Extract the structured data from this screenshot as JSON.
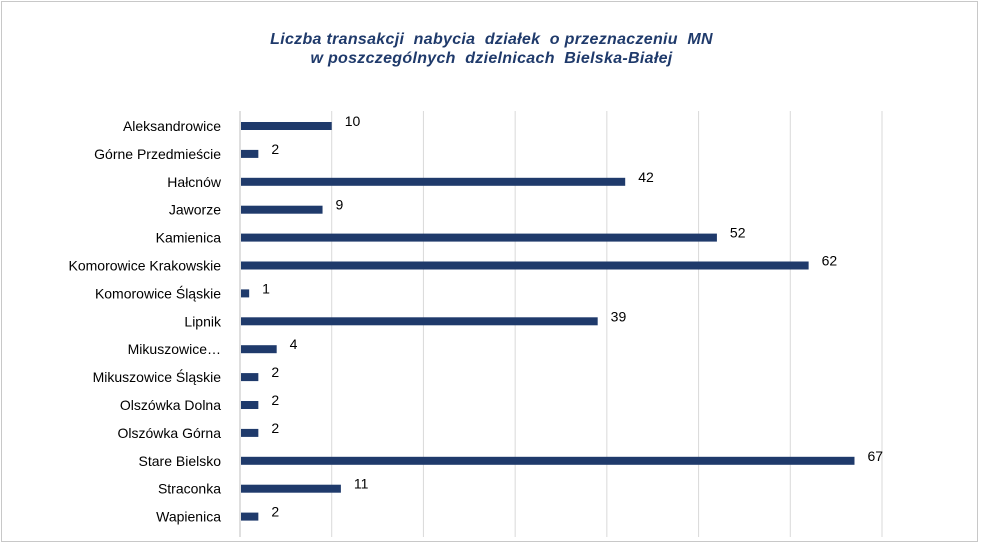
{
  "chart_data": {
    "type": "bar",
    "orientation": "horizontal",
    "title_lines": [
      "Liczba transakcji  nabycia  działek  o przeznaczeniu  MN",
      "w poszczególnych  dzielnicach  Bielska-Białej"
    ],
    "categories": [
      "Aleksandrowice",
      "Górne Przedmieście",
      "Hałcnów",
      "Jaworze",
      "Kamienica",
      "Komorowice Krakowskie",
      "Komorowice Śląskie",
      "Lipnik",
      "Mikuszowice…",
      "Mikuszowice Śląskie",
      "Olszówka Dolna",
      "Olszówka Górna",
      "Stare Bielsko",
      "Straconka",
      "Wapienica"
    ],
    "values": [
      10,
      2,
      42,
      9,
      52,
      62,
      1,
      39,
      4,
      2,
      2,
      2,
      67,
      11,
      2
    ],
    "xlim": [
      0,
      70
    ],
    "grid": true,
    "legend": "none",
    "colors": {
      "bar": "#1f3a6b",
      "grid": "#d9d9d9",
      "title": "#1f3a6b"
    }
  }
}
